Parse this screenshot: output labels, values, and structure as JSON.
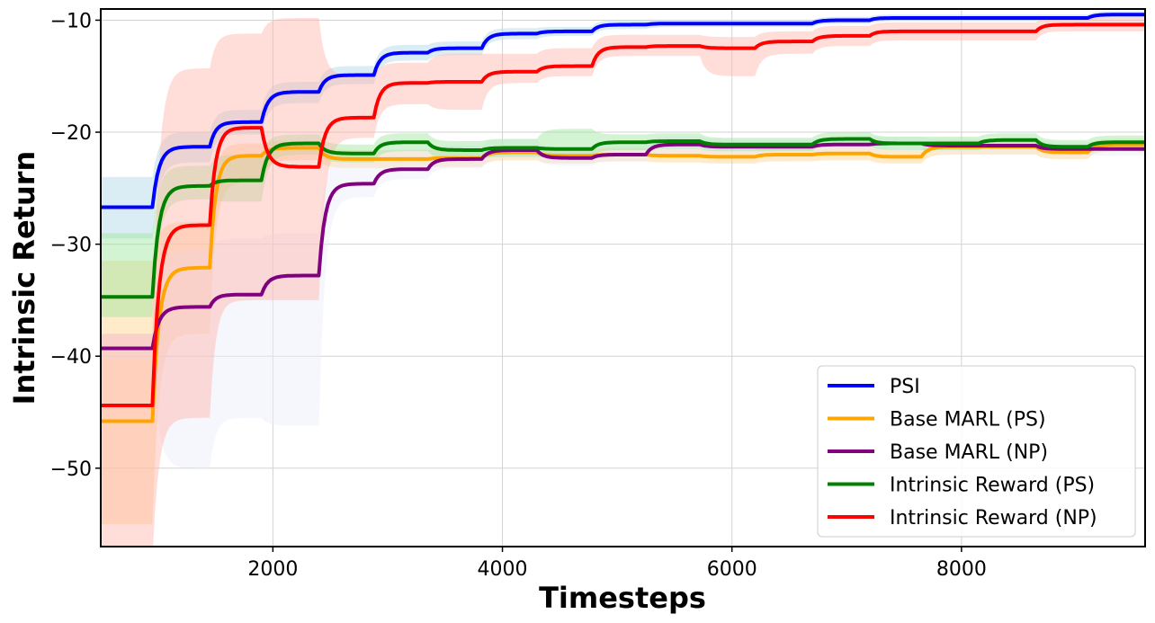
{
  "chart_data": {
    "type": "line",
    "title": "",
    "xlabel": "Timesteps",
    "ylabel": "Intrinsic Return",
    "xlim": [
      500,
      9600
    ],
    "ylim": [
      -57.0,
      -9.0
    ],
    "xticks": [
      2000,
      4000,
      6000,
      8000
    ],
    "xtick_labels": [
      "2000",
      "4000",
      "6000",
      "8000"
    ],
    "yticks": [
      -50,
      -40,
      -30,
      -20,
      -10
    ],
    "ytick_labels": [
      "−50",
      "−40",
      "−30",
      "−20",
      "−10"
    ],
    "grid": true,
    "legend_position": "bottom-right",
    "series": [
      {
        "name": "PSI",
        "color": "#0000ff",
        "band_color": "#add8e6",
        "x": [
          500,
          950,
          1450,
          1900,
          2400,
          2880,
          3350,
          3820,
          4300,
          4780,
          5250,
          5720,
          6200,
          6700,
          7200,
          7650,
          8150,
          8650,
          9100,
          9600
        ],
        "y": [
          -26.7,
          -26.7,
          -21.3,
          -19.1,
          -16.4,
          -14.9,
          -12.9,
          -12.5,
          -11.2,
          -11.0,
          -10.4,
          -10.3,
          -10.3,
          -10.3,
          -10.0,
          -9.8,
          -9.8,
          -9.8,
          -9.8,
          -9.5
        ],
        "lower": [
          -29.5,
          -29.5,
          -22.7,
          -20.2,
          -17.4,
          -15.7,
          -13.6,
          -13.1,
          -11.7,
          -11.4,
          -10.8,
          -10.6,
          -10.6,
          -10.6,
          -10.3,
          -10.1,
          -10.1,
          -10.1,
          -10.1,
          -9.8
        ],
        "upper": [
          -24.0,
          -24.0,
          -20.0,
          -18.0,
          -15.5,
          -14.1,
          -12.2,
          -11.9,
          -10.7,
          -10.6,
          -10.0,
          -10.0,
          -10.0,
          -10.0,
          -9.7,
          -9.5,
          -9.5,
          -9.5,
          -9.5,
          -9.2
        ]
      },
      {
        "name": "Base MARL (PS)",
        "color": "#ffa500",
        "band_color": "#ffd08a",
        "x": [
          500,
          950,
          1450,
          1900,
          2400,
          2880,
          3350,
          3820,
          4300,
          4780,
          5250,
          5720,
          6200,
          6700,
          7200,
          7650,
          8150,
          8650,
          9100,
          9600
        ],
        "y": [
          -45.8,
          -45.8,
          -32.1,
          -22.1,
          -21.4,
          -22.4,
          -22.4,
          -22.3,
          -21.8,
          -22.1,
          -22.0,
          -22.1,
          -22.2,
          -22.0,
          -21.9,
          -22.2,
          -21.3,
          -21.3,
          -21.8,
          -21.1
        ],
        "lower": [
          -55.0,
          -55.0,
          -38.0,
          -24.5,
          -22.5,
          -23.2,
          -23.2,
          -23.1,
          -22.5,
          -22.8,
          -22.6,
          -22.7,
          -22.8,
          -22.6,
          -22.5,
          -22.8,
          -22.0,
          -22.0,
          -22.4,
          -21.7
        ],
        "upper": [
          -31.5,
          -31.5,
          -28.0,
          -21.0,
          -20.8,
          -21.6,
          -21.6,
          -21.5,
          -21.2,
          -21.4,
          -21.4,
          -21.5,
          -21.6,
          -21.4,
          -21.3,
          -21.6,
          -20.7,
          -20.7,
          -21.2,
          -20.6
        ]
      },
      {
        "name": "Base MARL (NP)",
        "color": "#800080",
        "band_color": "#ececfb",
        "x": [
          500,
          950,
          1450,
          1900,
          2400,
          2880,
          3350,
          3820,
          4300,
          4780,
          5250,
          5720,
          6200,
          6700,
          7200,
          7650,
          8150,
          8650,
          9100,
          9600
        ],
        "y": [
          -39.3,
          -39.3,
          -35.6,
          -34.5,
          -32.8,
          -24.6,
          -23.3,
          -22.4,
          -21.6,
          -22.3,
          -22.0,
          -21.1,
          -21.3,
          -21.3,
          -21.1,
          -21.0,
          -21.2,
          -21.2,
          -21.5,
          -21.5
        ],
        "lower": [
          -40.3,
          -40.3,
          -50.0,
          -45.5,
          -46.2,
          -25.8,
          -24.2,
          -23.2,
          -22.3,
          -23.0,
          -22.6,
          -21.8,
          -22.0,
          -22.0,
          -21.7,
          -21.6,
          -21.8,
          -21.8,
          -22.1,
          -22.1
        ],
        "upper": [
          -38.0,
          -38.0,
          -30.5,
          -29.5,
          -29.0,
          -22.3,
          -21.5,
          -21.2,
          -20.6,
          -21.5,
          -21.2,
          -20.4,
          -20.6,
          -20.6,
          -20.5,
          -20.4,
          -20.6,
          -20.6,
          -20.9,
          -20.9
        ]
      },
      {
        "name": "Intrinsic Reward (PS)",
        "color": "#008000",
        "band_color": "#9be69b",
        "x": [
          500,
          950,
          1450,
          1900,
          2400,
          2880,
          3350,
          3820,
          4300,
          4780,
          5250,
          5720,
          6200,
          6700,
          7200,
          7650,
          8150,
          8650,
          9100,
          9600
        ],
        "y": [
          -34.7,
          -34.7,
          -24.8,
          -24.3,
          -21.0,
          -21.9,
          -20.9,
          -21.6,
          -21.4,
          -21.5,
          -20.9,
          -20.8,
          -21.1,
          -21.1,
          -20.6,
          -21.0,
          -21.0,
          -20.7,
          -21.3,
          -20.9
        ],
        "lower": [
          -36.5,
          -36.5,
          -26.0,
          -26.2,
          -22.0,
          -22.7,
          -21.7,
          -22.4,
          -22.2,
          -22.3,
          -21.6,
          -21.5,
          -21.7,
          -21.7,
          -21.2,
          -21.6,
          -21.6,
          -21.3,
          -21.9,
          -21.5
        ],
        "upper": [
          -29.0,
          -29.0,
          -23.0,
          -22.0,
          -20.2,
          -21.1,
          -20.1,
          -20.8,
          -20.6,
          -19.7,
          -20.2,
          -20.1,
          -20.5,
          -20.5,
          -20.0,
          -20.4,
          -20.4,
          -20.1,
          -20.7,
          -20.3
        ]
      },
      {
        "name": "Intrinsic Reward (NP)",
        "color": "#ff0000",
        "band_color": "#ffb4aa",
        "x": [
          500,
          950,
          1450,
          1900,
          2400,
          2880,
          3350,
          3820,
          4300,
          4780,
          5250,
          5720,
          6200,
          6700,
          7200,
          7650,
          8150,
          8650,
          9100,
          9600
        ],
        "y": [
          -44.4,
          -44.4,
          -28.3,
          -19.6,
          -23.1,
          -18.7,
          -15.6,
          -15.5,
          -14.6,
          -14.1,
          -12.4,
          -12.3,
          -12.5,
          -11.9,
          -11.4,
          -11.0,
          -11.0,
          -11.0,
          -10.4,
          -10.4
        ],
        "lower": [
          -58.0,
          -58.0,
          -45.5,
          -35.0,
          -35.0,
          -20.5,
          -17.5,
          -18.0,
          -15.6,
          -15.0,
          -13.2,
          -13.2,
          -15.0,
          -13.0,
          -12.3,
          -11.8,
          -11.8,
          -11.8,
          -11.0,
          -11.0
        ],
        "upper": [
          -38.0,
          -38.0,
          -14.3,
          -11.2,
          -9.8,
          -15.0,
          -13.8,
          -13.0,
          -13.0,
          -12.5,
          -11.3,
          -11.3,
          -11.5,
          -11.0,
          -10.5,
          -10.2,
          -10.2,
          -10.2,
          -9.8,
          -9.8
        ]
      }
    ]
  }
}
